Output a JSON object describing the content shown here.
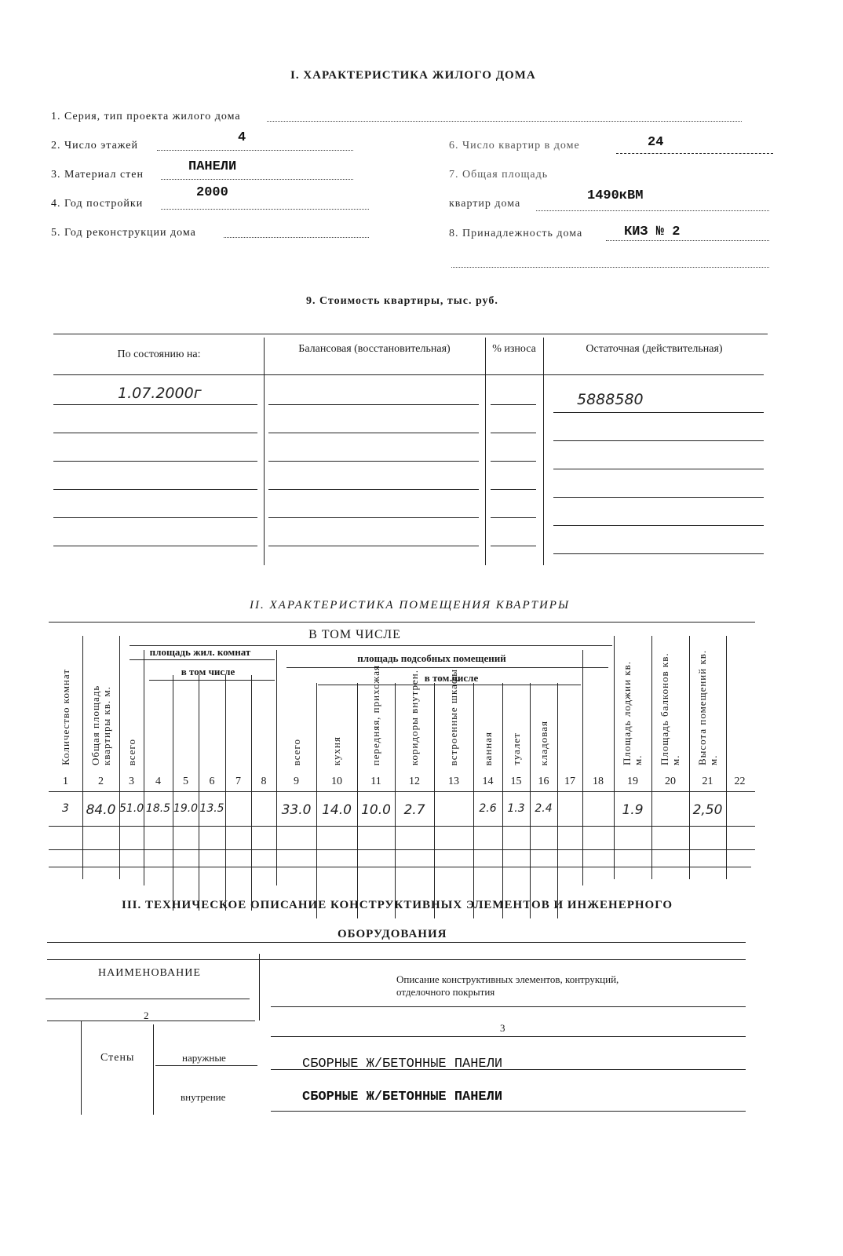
{
  "section1": {
    "title": "I. ХАРАКТЕРИСТИКА ЖИЛОГО ДОМА",
    "fields": [
      {
        "label": "1. Серия, тип проекта жилого дома",
        "value": ""
      },
      {
        "label": "2. Число этажей",
        "value": "4"
      },
      {
        "label": "3. Материал стен",
        "value": "ПАНЕЛИ"
      },
      {
        "label": "4. Год постройки",
        "value": "2000"
      },
      {
        "label": "5. Год реконструкции дома",
        "value": ""
      },
      {
        "label": "6. Число квартир в доме",
        "value": "24"
      },
      {
        "label": "7. Общая площадь",
        "label2": "квартир дома",
        "value": "1490кВМ"
      },
      {
        "label": "8. Принадлежность дома",
        "value": "КИЗ № 2"
      }
    ]
  },
  "cost": {
    "title": "9. Стоимость квартиры, тыс. руб.",
    "headers": [
      "По состоянию на:",
      "Балансовая (восстановительная)",
      "% износа",
      "Остаточная (действительная)"
    ],
    "rows": [
      [
        "1.07.2000г",
        "",
        "",
        "5888580"
      ]
    ]
  },
  "section2": {
    "title": "II. ХАРАКТЕРИСТИКА ПОМЕЩЕНИЯ КВАРТИРЫ",
    "group_all": "В ТОМ ЧИСЛЕ",
    "group_living": "площадь жил. комнат",
    "group_aux": "площадь подсобных помещений",
    "sub_incl": "в том числе",
    "columns": [
      "Количество комнат",
      "Общая площадь квартиры кв. м.",
      "всего",
      "",
      "",
      "",
      "",
      "",
      "всего",
      "кухня",
      "передняя, прихожая",
      "коридоры внутрен.",
      "встроенные шкафы",
      "ванная",
      "туалет",
      "кладовая",
      "",
      "",
      "Площадь лоджии кв. м.",
      "Площадь балконов кв. м.",
      "Высота помещений кв. м.",
      ""
    ],
    "numbers": [
      "1",
      "2",
      "3",
      "4",
      "5",
      "6",
      "7",
      "8",
      "9",
      "10",
      "11",
      "12",
      "13",
      "14",
      "15",
      "16",
      "17",
      "18",
      "19",
      "20",
      "21",
      "22"
    ],
    "row": [
      "3",
      "84.0",
      "51.0",
      "18.5",
      "19.0",
      "13.5",
      "",
      "",
      "33.0",
      "14.0",
      "10.0",
      "2.7",
      "",
      "2.6",
      "1.3",
      "2.4",
      "",
      "",
      "1.9",
      "",
      "2,50",
      ""
    ]
  },
  "section3": {
    "title": "III. ТЕХНИЧЕСКОЕ ОПИСАНИЕ КОНСТРУКТИВНЫХ ЭЛЕМЕНТОВ И ИНЖЕНЕРНОГО",
    "title2": "ОБОРУДОВАНИЯ",
    "col_name": "НАИМЕНОВАНИЕ",
    "col_desc": "Описание конструктивных элементов, контрукций, отделочного покрытия",
    "col_name_num": "2",
    "col_desc_num": "3",
    "walls": {
      "label": "Стены",
      "outer": "наружные",
      "inner": "внутрение",
      "outer_value": "СБОРНЫЕ Ж/БЕТОННЫЕ ПАНЕЛИ",
      "inner_value": "СБОРНЫЕ Ж/БЕТОННЫЕ ПАНЕЛИ"
    }
  }
}
